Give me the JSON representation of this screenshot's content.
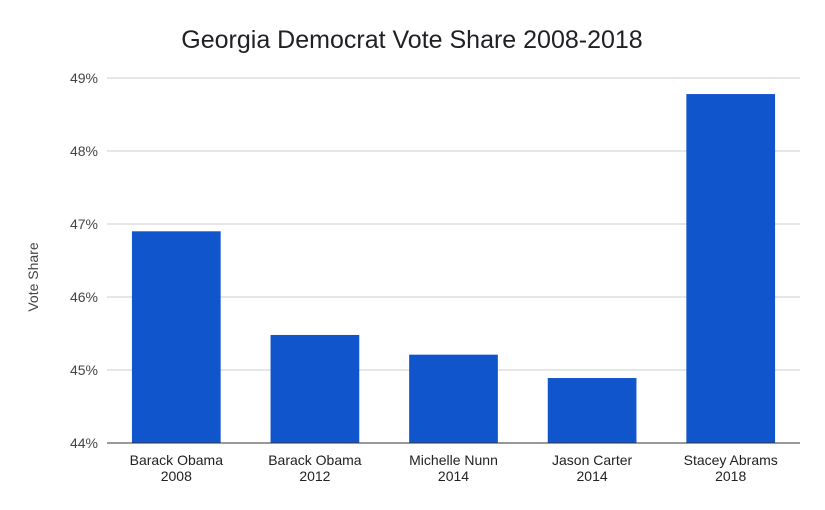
{
  "chart_data": {
    "type": "bar",
    "title": "Georgia Democrat Vote Share 2008-2018",
    "xlabel": "",
    "ylabel": "Vote Share",
    "categories": [
      [
        "Barack Obama",
        "2008"
      ],
      [
        "Barack Obama",
        "2012"
      ],
      [
        "Michelle Nunn",
        "2014"
      ],
      [
        "Jason Carter",
        "2014"
      ],
      [
        "Stacey Abrams",
        "2018"
      ]
    ],
    "values": [
      46.9,
      45.48,
      45.21,
      44.89,
      48.78
    ],
    "ylim": [
      44,
      49
    ],
    "yticks": [
      44,
      45,
      46,
      47,
      48,
      49
    ],
    "ytick_labels": [
      "44%",
      "45%",
      "46%",
      "47%",
      "48%",
      "49%"
    ],
    "bar_color": "#1155cc",
    "grid": true,
    "legend": "none"
  }
}
